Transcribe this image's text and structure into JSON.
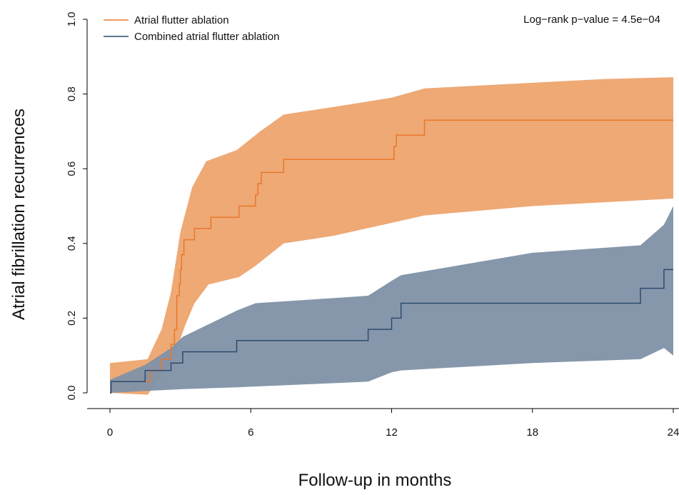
{
  "chart_data": {
    "type": "line",
    "title": "",
    "xlabel": "Follow-up in months",
    "ylabel": "Atrial fibrillation recurrences",
    "xlim": [
      0,
      24
    ],
    "ylim": [
      0,
      1.0
    ],
    "x_ticks": [
      0,
      6,
      12,
      18,
      24
    ],
    "y_ticks": [
      0.0,
      0.2,
      0.4,
      0.6,
      0.8,
      1.0
    ],
    "x_tick_labels": [
      "0",
      "6",
      "12",
      "18",
      "24"
    ],
    "y_tick_labels": [
      "0.0",
      "0.2",
      "0.4",
      "0.6",
      "0.8",
      "1.0"
    ],
    "grid": false,
    "legend_position": "top-left",
    "annotation": "Log−rank p−value = 4.5e−04",
    "series": [
      {
        "name": "Atrial flutter ablation",
        "color": "#E8782A",
        "band_color": "#EDA46E",
        "steps": [
          [
            0,
            0.0
          ],
          [
            0.05,
            0.03
          ],
          [
            1.7,
            0.06
          ],
          [
            2.2,
            0.09
          ],
          [
            2.6,
            0.13
          ],
          [
            2.75,
            0.17
          ],
          [
            2.85,
            0.26
          ],
          [
            2.95,
            0.29
          ],
          [
            3.0,
            0.33
          ],
          [
            3.05,
            0.37
          ],
          [
            3.15,
            0.41
          ],
          [
            3.6,
            0.44
          ],
          [
            4.3,
            0.47
          ],
          [
            5.5,
            0.5
          ],
          [
            6.2,
            0.53
          ],
          [
            6.3,
            0.56
          ],
          [
            6.45,
            0.59
          ],
          [
            7.4,
            0.625
          ],
          [
            12.1,
            0.66
          ],
          [
            12.2,
            0.69
          ],
          [
            13.4,
            0.73
          ],
          [
            24,
            0.73
          ]
        ],
        "upper": [
          [
            0,
            0.08
          ],
          [
            1.6,
            0.09
          ],
          [
            2.2,
            0.17
          ],
          [
            2.6,
            0.27
          ],
          [
            3.0,
            0.43
          ],
          [
            3.5,
            0.55
          ],
          [
            4.1,
            0.62
          ],
          [
            5.4,
            0.65
          ],
          [
            6.4,
            0.7
          ],
          [
            7.4,
            0.745
          ],
          [
            9.5,
            0.765
          ],
          [
            12.0,
            0.79
          ],
          [
            13.4,
            0.815
          ],
          [
            18,
            0.83
          ],
          [
            21,
            0.84
          ],
          [
            24,
            0.845
          ]
        ],
        "lower": [
          [
            0,
            0.0
          ],
          [
            1.6,
            -0.005
          ],
          [
            2.4,
            0.06
          ],
          [
            2.75,
            0.1
          ],
          [
            3.2,
            0.18
          ],
          [
            3.6,
            0.24
          ],
          [
            4.2,
            0.29
          ],
          [
            5.5,
            0.31
          ],
          [
            6.2,
            0.34
          ],
          [
            7.4,
            0.4
          ],
          [
            9.5,
            0.42
          ],
          [
            12.0,
            0.455
          ],
          [
            13.4,
            0.475
          ],
          [
            18,
            0.5
          ],
          [
            24,
            0.52
          ]
        ]
      },
      {
        "name": "Combined atrial flutter ablation",
        "color": "#2D4A6E",
        "band_color": "#7F91A6",
        "steps": [
          [
            0,
            0.0
          ],
          [
            0.05,
            0.03
          ],
          [
            1.5,
            0.06
          ],
          [
            2.6,
            0.08
          ],
          [
            3.1,
            0.11
          ],
          [
            5.4,
            0.14
          ],
          [
            11.0,
            0.17
          ],
          [
            12.0,
            0.2
          ],
          [
            12.4,
            0.24
          ],
          [
            22.6,
            0.28
          ],
          [
            23.6,
            0.33
          ],
          [
            24,
            0.33
          ]
        ],
        "upper": [
          [
            0,
            0.035
          ],
          [
            1.5,
            0.075
          ],
          [
            2.6,
            0.12
          ],
          [
            3.1,
            0.15
          ],
          [
            5.4,
            0.22
          ],
          [
            6.2,
            0.24
          ],
          [
            11.0,
            0.26
          ],
          [
            12.0,
            0.3
          ],
          [
            12.4,
            0.315
          ],
          [
            18,
            0.375
          ],
          [
            22.6,
            0.395
          ],
          [
            23.6,
            0.45
          ],
          [
            24,
            0.5
          ]
        ],
        "lower": [
          [
            0,
            0.0
          ],
          [
            1.5,
            0.005
          ],
          [
            3.1,
            0.01
          ],
          [
            5.4,
            0.015
          ],
          [
            11.0,
            0.03
          ],
          [
            12.0,
            0.055
          ],
          [
            12.4,
            0.06
          ],
          [
            18,
            0.08
          ],
          [
            22.6,
            0.09
          ],
          [
            23.6,
            0.12
          ],
          [
            24,
            0.1
          ]
        ]
      }
    ]
  }
}
